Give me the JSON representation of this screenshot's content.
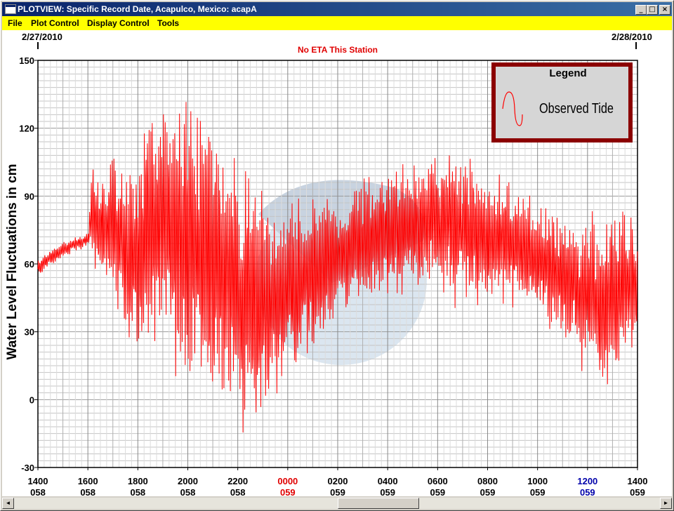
{
  "window": {
    "title": "PLOTVIEW: Specific Record Date, Acapulco, Mexico: acapA",
    "controls": {
      "minimize": "_",
      "maximize": "□",
      "close": "×"
    }
  },
  "menu": [
    "File",
    "Plot Control",
    "Display Control",
    "Tools"
  ],
  "chart_data": {
    "type": "line",
    "subtitle": "No ETA This Station",
    "ylabel": "Water Level Fluctuations in cm",
    "date_start": "2/27/2010",
    "date_end": "2/28/2010",
    "ylim": [
      -30,
      150
    ],
    "yticks": [
      -30,
      0,
      30,
      60,
      90,
      120,
      150
    ],
    "grid": true,
    "legend": {
      "title": "Legend",
      "position": "top-right",
      "entries": [
        "Observed Tide"
      ]
    },
    "xticks": [
      {
        "time": "1400",
        "day": "058",
        "color": "#000000"
      },
      {
        "time": "1600",
        "day": "058",
        "color": "#000000"
      },
      {
        "time": "1800",
        "day": "058",
        "color": "#000000"
      },
      {
        "time": "2000",
        "day": "058",
        "color": "#000000"
      },
      {
        "time": "2200",
        "day": "058",
        "color": "#000000"
      },
      {
        "time": "0000",
        "day": "059",
        "color": "#e00000"
      },
      {
        "time": "0200",
        "day": "059",
        "color": "#000000"
      },
      {
        "time": "0400",
        "day": "059",
        "color": "#000000"
      },
      {
        "time": "0600",
        "day": "059",
        "color": "#000000"
      },
      {
        "time": "0800",
        "day": "059",
        "color": "#000000"
      },
      {
        "time": "1000",
        "day": "059",
        "color": "#000000"
      },
      {
        "time": "1200",
        "day": "059",
        "color": "#0000aa"
      },
      {
        "time": "1400",
        "day": "059",
        "color": "#000000"
      }
    ],
    "series": [
      {
        "name": "Observed Tide",
        "color": "#ff0000",
        "x_hours": [
          0,
          0.5,
          1,
          1.5,
          2,
          2.2,
          2.5,
          3,
          3.5,
          4,
          4.5,
          5,
          5.5,
          6,
          6.5,
          7,
          7.5,
          8,
          8.5,
          9,
          9.5,
          10,
          10.5,
          11,
          11.5,
          12,
          12.5,
          13,
          13.5,
          14,
          14.5,
          15,
          15.5,
          16,
          16.5,
          17,
          17.5,
          18,
          18.5,
          19,
          19.5,
          20,
          20.5,
          21,
          21.5,
          22,
          22.5,
          23,
          23.5,
          24
        ],
        "y_cm": [
          58,
          63,
          66,
          69,
          71,
          84,
          75,
          78,
          68,
          62,
          78,
          76,
          77,
          70,
          66,
          60,
          52,
          48,
          45,
          42,
          44,
          46,
          50,
          55,
          58,
          62,
          66,
          70,
          72,
          75,
          75,
          77,
          78,
          80,
          78,
          76,
          74,
          72,
          70,
          68,
          66,
          62,
          58,
          54,
          50,
          46,
          44,
          45,
          48,
          52
        ],
        "envelope_cm": [
          3,
          3,
          3,
          3,
          3,
          18,
          20,
          28,
          34,
          40,
          46,
          52,
          56,
          58,
          58,
          56,
          54,
          52,
          50,
          46,
          42,
          38,
          34,
          30,
          28,
          26,
          24,
          24,
          24,
          24,
          24,
          24,
          26,
          28,
          30,
          30,
          30,
          28,
          26,
          24,
          22,
          22,
          24,
          26,
          28,
          30,
          32,
          34,
          30,
          26
        ]
      }
    ]
  },
  "scrollbar": {
    "left_arrow": "◄",
    "right_arrow": "►"
  }
}
